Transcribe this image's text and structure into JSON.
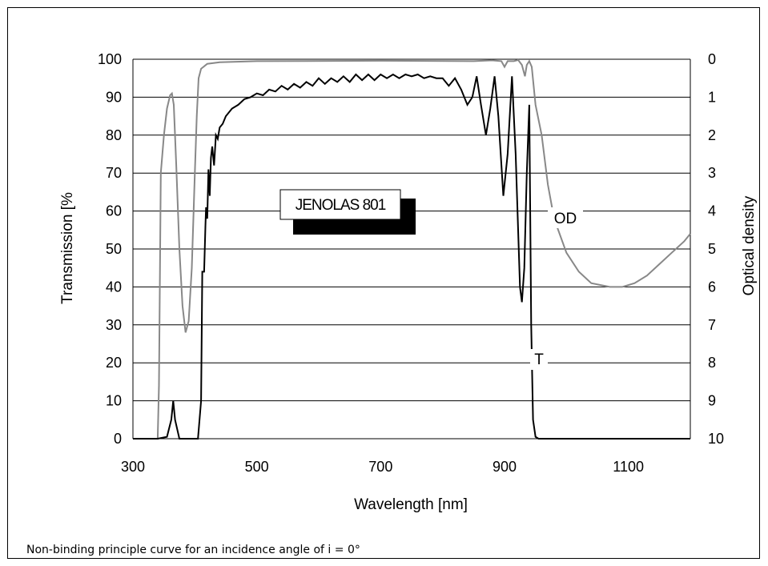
{
  "caption": "Non-binding principle curve for an incidence angle of i = 0°",
  "chart_data": {
    "type": "line",
    "xlabel": "Wavelength [nm]",
    "ylabel": "Transmission [%",
    "y2label": "Optical density",
    "xlim": [
      300,
      1200
    ],
    "ylim": [
      0,
      100
    ],
    "y2lim": [
      10,
      0
    ],
    "x_ticks": [
      "300",
      "500",
      "700",
      "900",
      "1100"
    ],
    "y_ticks": [
      "0",
      "10",
      "20",
      "30",
      "40",
      "50",
      "60",
      "70",
      "80",
      "90",
      "100"
    ],
    "y2_ticks": [
      "10",
      "9",
      "8",
      "7",
      "6",
      "5",
      "4",
      "3",
      "2",
      "1",
      "0"
    ],
    "grid": "horizontal",
    "product_label": "JENOLAS 801",
    "series": [
      {
        "name": "T",
        "axis": "left",
        "color": "#000000",
        "points": [
          [
            300,
            0
          ],
          [
            340,
            0
          ],
          [
            355,
            0.5
          ],
          [
            362,
            5
          ],
          [
            365,
            10
          ],
          [
            368,
            5
          ],
          [
            375,
            0
          ],
          [
            405,
            0
          ],
          [
            410,
            10
          ],
          [
            412,
            44
          ],
          [
            415,
            44
          ],
          [
            417,
            56
          ],
          [
            418,
            61
          ],
          [
            420,
            58
          ],
          [
            422,
            71
          ],
          [
            424,
            64
          ],
          [
            426,
            74
          ],
          [
            428,
            77
          ],
          [
            431,
            72
          ],
          [
            434,
            80
          ],
          [
            437,
            79
          ],
          [
            440,
            82
          ],
          [
            445,
            83
          ],
          [
            450,
            85
          ],
          [
            460,
            87
          ],
          [
            470,
            88
          ],
          [
            480,
            89.5
          ],
          [
            490,
            90
          ],
          [
            500,
            91
          ],
          [
            510,
            90.5
          ],
          [
            520,
            92
          ],
          [
            530,
            91.5
          ],
          [
            540,
            93
          ],
          [
            550,
            92
          ],
          [
            560,
            93.5
          ],
          [
            570,
            92.5
          ],
          [
            580,
            94
          ],
          [
            590,
            93
          ],
          [
            600,
            95
          ],
          [
            610,
            93.5
          ],
          [
            620,
            95
          ],
          [
            630,
            94
          ],
          [
            640,
            95.5
          ],
          [
            650,
            94
          ],
          [
            660,
            96
          ],
          [
            670,
            94.5
          ],
          [
            680,
            96
          ],
          [
            690,
            94.5
          ],
          [
            700,
            96
          ],
          [
            710,
            95
          ],
          [
            720,
            96
          ],
          [
            730,
            95
          ],
          [
            740,
            96
          ],
          [
            750,
            95.5
          ],
          [
            760,
            96
          ],
          [
            770,
            95
          ],
          [
            780,
            95.5
          ],
          [
            790,
            95
          ],
          [
            800,
            95
          ],
          [
            810,
            93
          ],
          [
            820,
            95
          ],
          [
            830,
            92
          ],
          [
            840,
            88
          ],
          [
            848,
            90
          ],
          [
            855,
            95.5
          ],
          [
            862,
            88
          ],
          [
            870,
            80
          ],
          [
            877,
            87
          ],
          [
            884,
            95.5
          ],
          [
            890,
            85
          ],
          [
            898,
            64
          ],
          [
            905,
            75
          ],
          [
            912,
            95.5
          ],
          [
            918,
            75
          ],
          [
            925,
            40
          ],
          [
            928,
            36
          ],
          [
            932,
            45
          ],
          [
            936,
            70
          ],
          [
            940,
            88
          ],
          [
            943,
            30
          ],
          [
            946,
            5
          ],
          [
            950,
            0.5
          ],
          [
            955,
            0
          ],
          [
            1200,
            0
          ]
        ]
      },
      {
        "name": "OD",
        "axis": "right",
        "color": "#888888",
        "points": [
          [
            300,
            10
          ],
          [
            340,
            10
          ],
          [
            342,
            8.6
          ],
          [
            345,
            3.0
          ],
          [
            350,
            2.0
          ],
          [
            355,
            1.3
          ],
          [
            360,
            0.95
          ],
          [
            363,
            0.9
          ],
          [
            366,
            1.2
          ],
          [
            370,
            2.8
          ],
          [
            375,
            5.0
          ],
          [
            380,
            6.5
          ],
          [
            385,
            7.2
          ],
          [
            390,
            6.9
          ],
          [
            395,
            5.5
          ],
          [
            400,
            3.0
          ],
          [
            403,
            1.5
          ],
          [
            406,
            0.5
          ],
          [
            410,
            0.25
          ],
          [
            420,
            0.12
          ],
          [
            440,
            0.08
          ],
          [
            500,
            0.05
          ],
          [
            700,
            0.04
          ],
          [
            850,
            0.05
          ],
          [
            880,
            0.03
          ],
          [
            895,
            0.05
          ],
          [
            900,
            0.2
          ],
          [
            905,
            0.05
          ],
          [
            915,
            0.05
          ],
          [
            922,
            0.02
          ],
          [
            928,
            0.15
          ],
          [
            933,
            0.45
          ],
          [
            936,
            0.15
          ],
          [
            940,
            0.05
          ],
          [
            944,
            0.2
          ],
          [
            950,
            1.2
          ],
          [
            960,
            2.0
          ],
          [
            970,
            3.3
          ],
          [
            980,
            4.2
          ],
          [
            1000,
            5.1
          ],
          [
            1020,
            5.6
          ],
          [
            1040,
            5.9
          ],
          [
            1070,
            6.0
          ],
          [
            1090,
            6.0
          ],
          [
            1110,
            5.9
          ],
          [
            1130,
            5.7
          ],
          [
            1150,
            5.4
          ],
          [
            1170,
            5.1
          ],
          [
            1190,
            4.8
          ],
          [
            1200,
            4.6
          ]
        ]
      }
    ]
  }
}
